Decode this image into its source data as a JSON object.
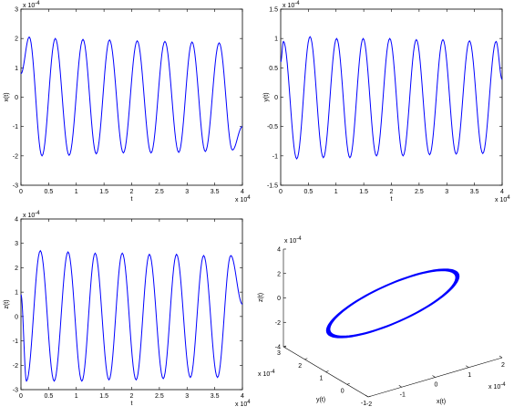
{
  "chart_data": [
    {
      "type": "line",
      "xlabel": "t",
      "ylabel": "x(t)",
      "x_exponent_label": "x 10",
      "x_exponent": "4",
      "y_exponent_label": "x 10",
      "y_exponent": "-4",
      "xlim": [
        0,
        4
      ],
      "ylim": [
        -3,
        3
      ],
      "xticks": [
        "0",
        "0.5",
        "1",
        "1.5",
        "2",
        "2.5",
        "3",
        "3.5",
        "4"
      ],
      "yticks": [
        "-3",
        "-2",
        "-1",
        "0",
        "1",
        "2",
        "3"
      ],
      "xtick_values": [
        0,
        0.5,
        1,
        1.5,
        2,
        2.5,
        3,
        3.5,
        4
      ],
      "ytick_values": [
        -3,
        -2,
        -1,
        0,
        1,
        2,
        3
      ],
      "series": [
        {
          "color": "#0000ff",
          "x": [
            0,
            0.15,
            0.38,
            0.62,
            0.87,
            1.12,
            1.36,
            1.6,
            1.85,
            2.1,
            2.35,
            2.6,
            2.85,
            3.09,
            3.33,
            3.58,
            3.82,
            4.0
          ],
          "y": [
            0.8,
            2.05,
            -2.0,
            2.0,
            -1.98,
            1.97,
            -1.93,
            1.95,
            -1.9,
            1.92,
            -1.9,
            1.9,
            -1.88,
            1.88,
            -1.85,
            1.85,
            -1.8,
            -1.0
          ]
        }
      ]
    },
    {
      "type": "line",
      "xlabel": "t",
      "ylabel": "y(t)",
      "x_exponent_label": "x 10",
      "x_exponent": "4",
      "y_exponent_label": "x 10",
      "y_exponent": "-4",
      "xlim": [
        0,
        4
      ],
      "ylim": [
        -1.5,
        1.5
      ],
      "xticks": [
        "0",
        "0.5",
        "1",
        "1.5",
        "2",
        "2.5",
        "3",
        "3.5",
        "4"
      ],
      "yticks": [
        "-1.5",
        "-1",
        "-0.5",
        "0",
        "0.5",
        "1",
        "1.5"
      ],
      "xtick_values": [
        0,
        0.5,
        1,
        1.5,
        2,
        2.5,
        3,
        3.5,
        4
      ],
      "ytick_values": [
        -1.5,
        -1,
        -0.5,
        0,
        0.5,
        1,
        1.5
      ],
      "series": [
        {
          "color": "#0000ff",
          "x": [
            0,
            0.05,
            0.29,
            0.53,
            0.77,
            1.01,
            1.25,
            1.49,
            1.73,
            1.97,
            2.21,
            2.45,
            2.69,
            2.93,
            3.17,
            3.41,
            3.65,
            3.89,
            4.0
          ],
          "y": [
            0.6,
            0.95,
            -1.05,
            1.03,
            -1.03,
            1.0,
            -1.03,
            1.0,
            -1.0,
            1.0,
            -1.0,
            0.98,
            -0.98,
            0.98,
            -0.97,
            0.96,
            -0.96,
            0.95,
            0.3
          ]
        }
      ]
    },
    {
      "type": "line",
      "xlabel": "t",
      "ylabel": "z(t)",
      "x_exponent_label": "x 10",
      "x_exponent": "4",
      "y_exponent_label": "x 10",
      "y_exponent": "-4",
      "xlim": [
        0,
        4
      ],
      "ylim": [
        -3,
        4
      ],
      "xticks": [
        "0",
        "0.5",
        "1",
        "1.5",
        "2",
        "2.5",
        "3",
        "3.5",
        "4"
      ],
      "yticks": [
        "-3",
        "-2",
        "-1",
        "0",
        "1",
        "2",
        "3",
        "4"
      ],
      "xtick_values": [
        0,
        0.5,
        1,
        1.5,
        2,
        2.5,
        3,
        3.5,
        4
      ],
      "ytick_values": [
        -3,
        -2,
        -1,
        0,
        1,
        2,
        3,
        4
      ],
      "series": [
        {
          "color": "#0000ff",
          "x": [
            0,
            0.1,
            0.35,
            0.6,
            0.85,
            1.1,
            1.34,
            1.59,
            1.83,
            2.08,
            2.32,
            2.57,
            2.81,
            3.06,
            3.3,
            3.55,
            3.79,
            4.0
          ],
          "y": [
            0.9,
            -2.65,
            2.7,
            -2.65,
            2.65,
            -2.65,
            2.6,
            -2.6,
            2.6,
            -2.6,
            2.55,
            -2.55,
            2.55,
            -2.5,
            2.5,
            -2.5,
            2.5,
            0.5
          ]
        }
      ]
    },
    {
      "type": "line",
      "subtype": "3d-trajectory",
      "xlabel": "x(t)",
      "ylabel": "y(t)",
      "zlabel": "z(t)",
      "x_exponent_label": "x 10",
      "x_exponent": "-4",
      "y_exponent_label": "x 10",
      "y_exponent": "-4",
      "z_exponent_label": "x 10",
      "z_exponent": "-4",
      "xlim": [
        -2,
        2
      ],
      "ylim": [
        -1,
        3
      ],
      "zlim": [
        -4,
        4
      ],
      "xticks": [
        "-2",
        "-1",
        "0",
        "1",
        "2"
      ],
      "yticks": [
        "-1",
        "0",
        "1",
        "2",
        "3"
      ],
      "zticks": [
        "-4",
        "-2",
        "0",
        "2",
        "4"
      ],
      "xtick_values": [
        -2,
        -1,
        0,
        1,
        2
      ],
      "ytick_values": [
        -1,
        0,
        1,
        2,
        3
      ],
      "ztick_values": [
        -4,
        -2,
        0,
        2,
        4
      ],
      "series": [
        {
          "color": "#0000ff",
          "description_values": {
            "x_amplitude": 2.0,
            "y_amplitude": 1.0,
            "z_amplitude": 2.6
          }
        }
      ]
    }
  ]
}
